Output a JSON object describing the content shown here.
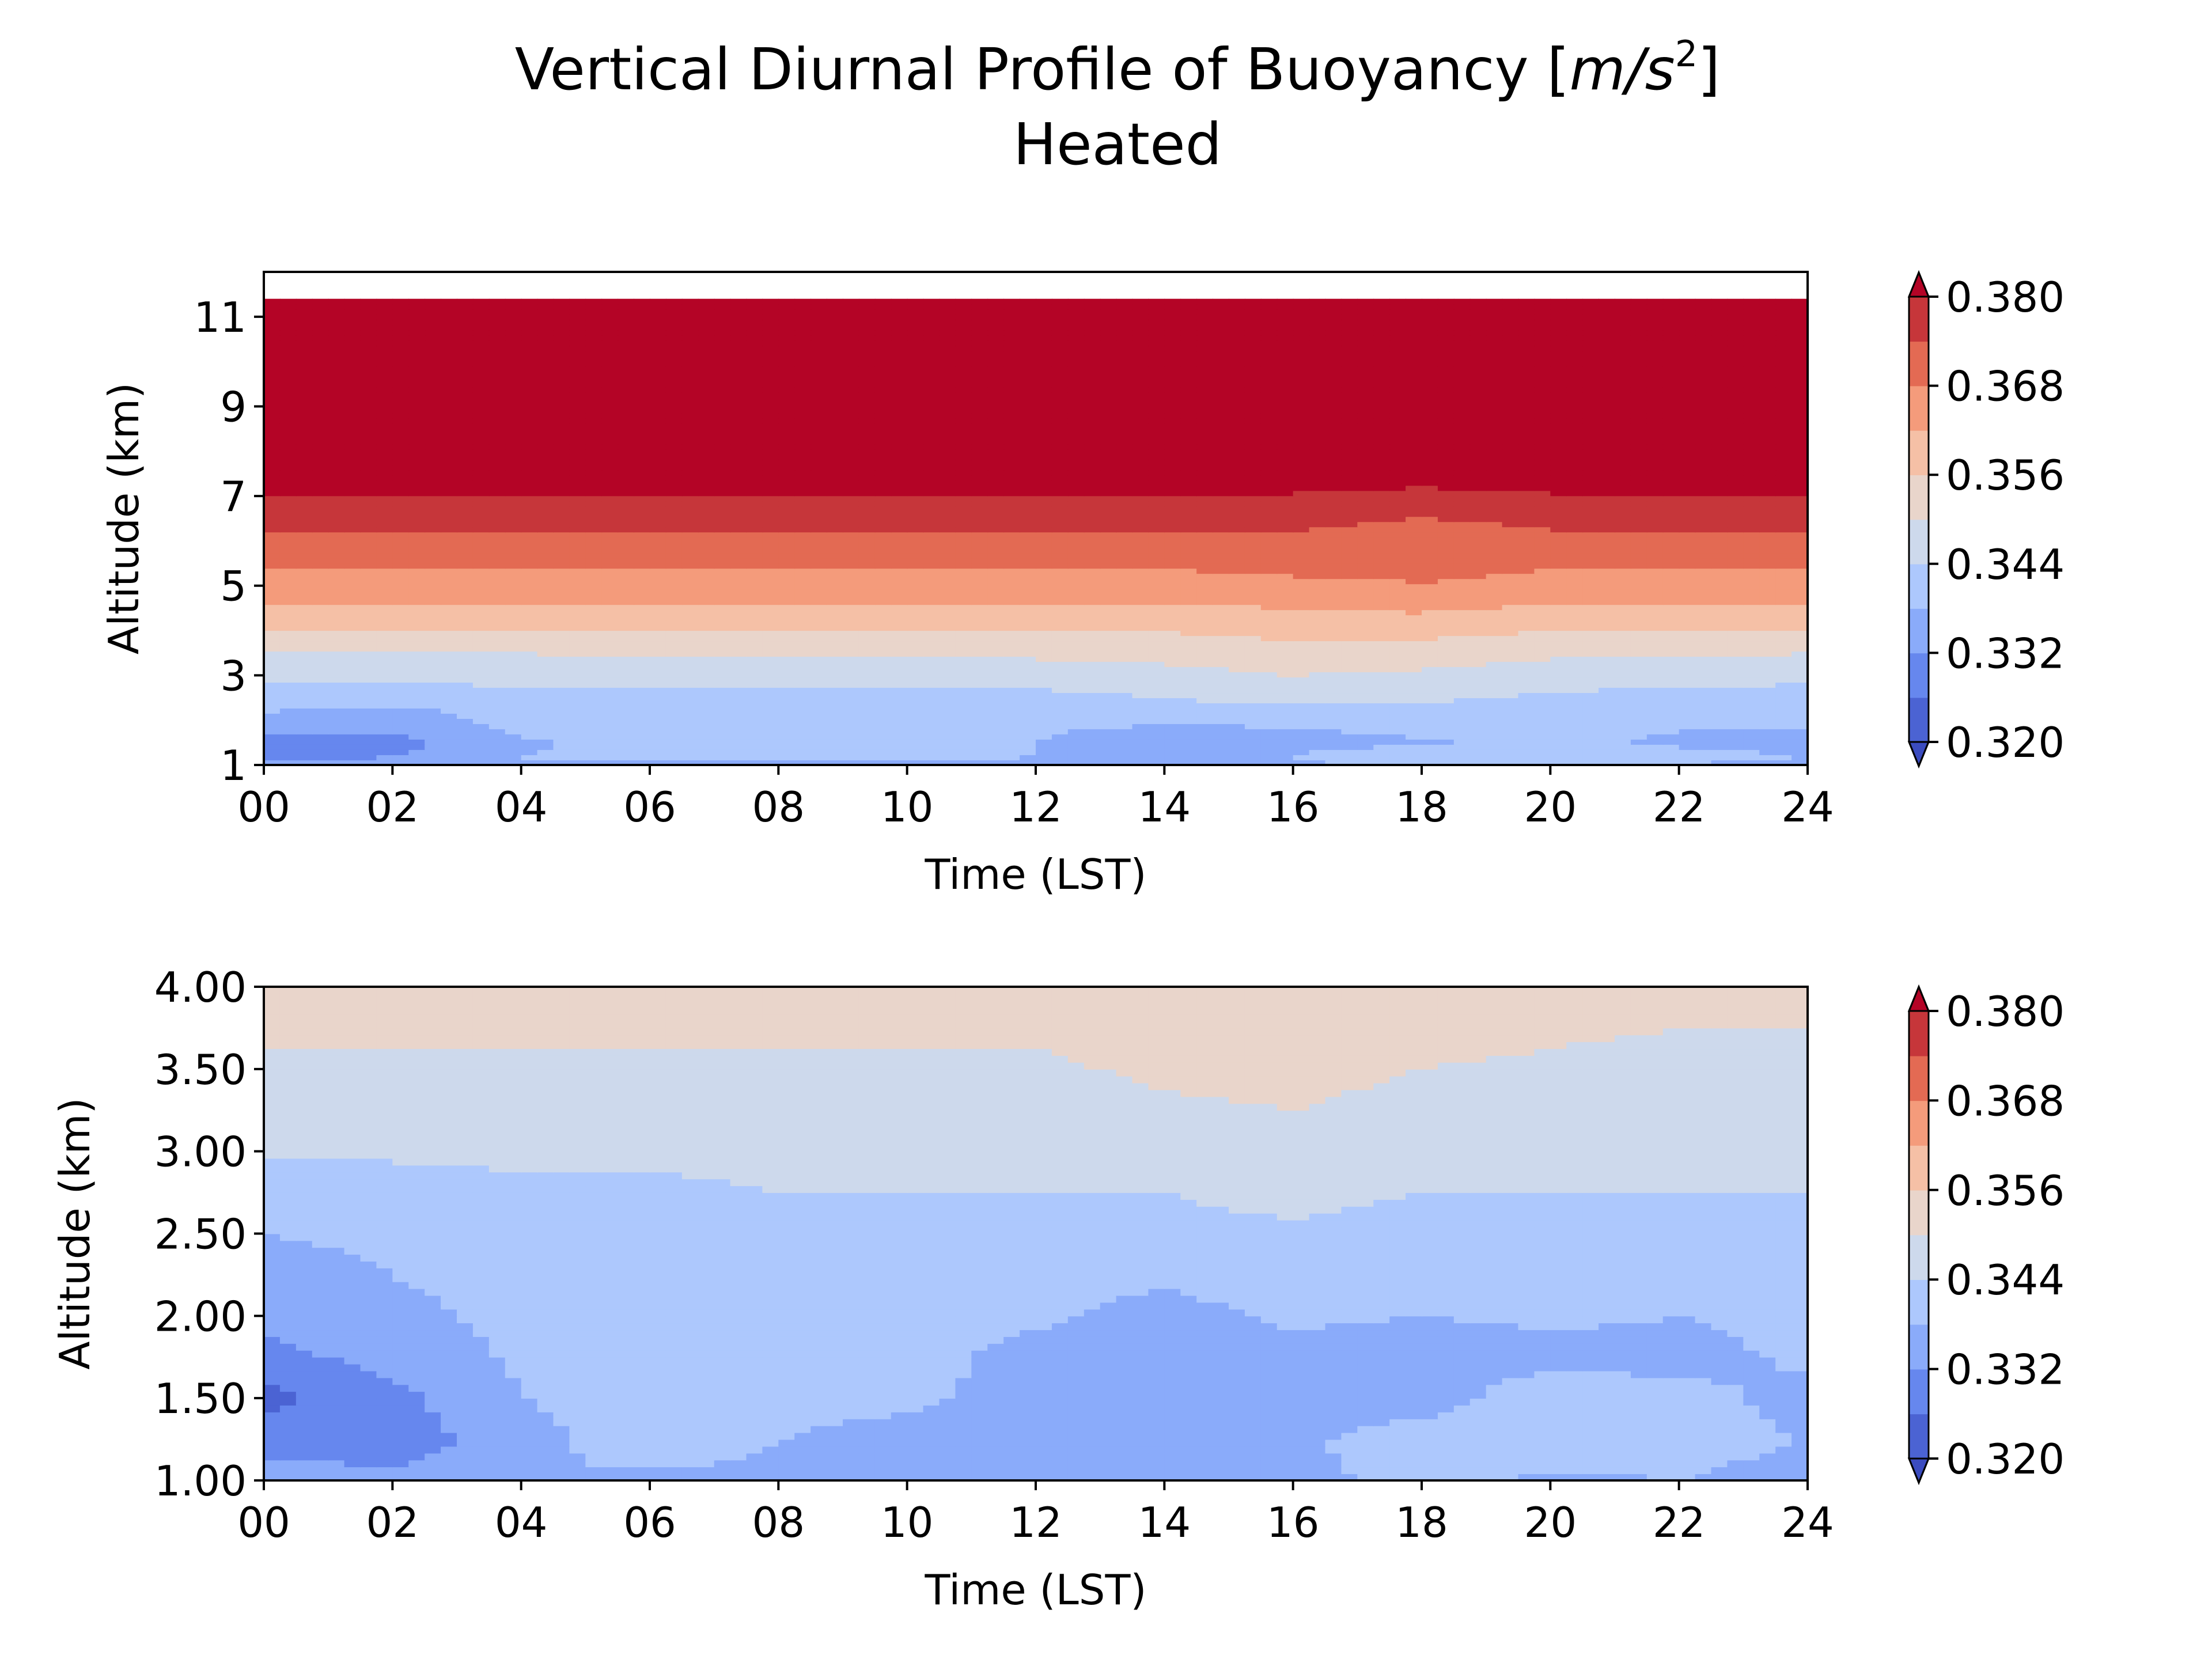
{
  "figure": {
    "title_main": "Vertical Diurnal Profile of Buoyancy [",
    "title_unit_m": "m",
    "title_unit_slash": "/",
    "title_unit_s": "s",
    "title_unit_exp": "2",
    "title_close": "]",
    "subtitle": "Heated"
  },
  "colormap": {
    "name": "coolwarm",
    "levels": [
      0.32,
      0.326,
      0.332,
      0.338,
      0.344,
      0.35,
      0.356,
      0.362,
      0.368,
      0.374,
      0.38
    ],
    "colors": [
      "#4b63d3",
      "#6687ee",
      "#8aabfa",
      "#adc8fd",
      "#cdd9ec",
      "#e9d5cb",
      "#f5c0a6",
      "#f49b7b",
      "#e36a53",
      "#c6363a"
    ],
    "under_color": "#3b4cc0",
    "over_color": "#b40426",
    "colorbar_ticks": [
      "0.320",
      "0.332",
      "0.344",
      "0.356",
      "0.368",
      "0.380"
    ]
  },
  "chart_data": [
    {
      "type": "heatmap",
      "panel": "top",
      "xlabel": "Time (LST)",
      "ylabel": "Altitude (km)",
      "xlim": [
        0,
        24
      ],
      "ylim": [
        1,
        12
      ],
      "x_ticks": [
        "00",
        "02",
        "04",
        "06",
        "08",
        "10",
        "12",
        "14",
        "16",
        "18",
        "20",
        "22",
        "24"
      ],
      "y_ticks": [
        "1",
        "3",
        "5",
        "7",
        "9",
        "11"
      ],
      "y_tick_values": [
        1,
        3,
        5,
        7,
        9,
        11
      ],
      "data_top_km": 11.4,
      "grid": false,
      "colorbar": "right",
      "altitude_km": [
        1.0,
        1.2,
        1.5,
        2.0,
        2.5,
        3.0,
        3.5,
        4.2,
        4.8,
        5.5,
        6.4,
        7.2,
        11.4
      ],
      "time_lst": [
        0,
        2,
        4,
        6,
        8,
        10,
        12,
        14,
        16,
        18,
        20,
        22,
        24
      ],
      "buoyancy_by_altitude": [
        [
          0.334,
          0.334,
          0.338,
          0.336,
          0.337,
          0.337,
          0.337,
          0.336,
          0.337,
          0.339,
          0.337,
          0.338,
          0.336
        ],
        [
          0.33,
          0.332,
          0.338,
          0.34,
          0.34,
          0.34,
          0.338,
          0.336,
          0.338,
          0.343,
          0.344,
          0.34,
          0.338
        ],
        [
          0.328,
          0.33,
          0.337,
          0.341,
          0.34,
          0.338,
          0.338,
          0.334,
          0.336,
          0.337,
          0.34,
          0.337,
          0.336
        ],
        [
          0.336,
          0.334,
          0.34,
          0.341,
          0.341,
          0.34,
          0.339,
          0.339,
          0.339,
          0.341,
          0.339,
          0.339,
          0.339
        ],
        [
          0.341,
          0.34,
          0.342,
          0.342,
          0.342,
          0.342,
          0.342,
          0.344,
          0.346,
          0.345,
          0.343,
          0.342,
          0.341
        ],
        [
          0.346,
          0.346,
          0.346,
          0.347,
          0.346,
          0.346,
          0.347,
          0.348,
          0.35,
          0.349,
          0.347,
          0.346,
          0.346
        ],
        [
          0.35,
          0.35,
          0.35,
          0.351,
          0.351,
          0.351,
          0.351,
          0.352,
          0.354,
          0.353,
          0.351,
          0.351,
          0.35
        ],
        [
          0.358,
          0.358,
          0.358,
          0.358,
          0.358,
          0.358,
          0.358,
          0.358,
          0.359,
          0.36,
          0.358,
          0.358,
          0.358
        ],
        [
          0.364,
          0.364,
          0.364,
          0.364,
          0.364,
          0.364,
          0.364,
          0.364,
          0.365,
          0.366,
          0.364,
          0.364,
          0.364
        ],
        [
          0.369,
          0.369,
          0.369,
          0.369,
          0.369,
          0.369,
          0.369,
          0.369,
          0.37,
          0.371,
          0.369,
          0.369,
          0.369
        ],
        [
          0.375,
          0.375,
          0.375,
          0.375,
          0.375,
          0.375,
          0.375,
          0.375,
          0.375,
          0.373,
          0.375,
          0.375,
          0.375
        ],
        [
          0.381,
          0.381,
          0.381,
          0.381,
          0.381,
          0.381,
          0.381,
          0.381,
          0.381,
          0.38,
          0.381,
          0.381,
          0.381
        ],
        [
          0.385,
          0.385,
          0.385,
          0.385,
          0.385,
          0.385,
          0.385,
          0.385,
          0.385,
          0.385,
          0.385,
          0.385,
          0.385
        ]
      ]
    },
    {
      "type": "heatmap",
      "panel": "bottom",
      "xlabel": "Time (LST)",
      "ylabel": "Altitude (km)",
      "xlim": [
        0,
        24
      ],
      "ylim": [
        1.0,
        4.0
      ],
      "x_ticks": [
        "00",
        "02",
        "04",
        "06",
        "08",
        "10",
        "12",
        "14",
        "16",
        "18",
        "20",
        "22",
        "24"
      ],
      "y_ticks": [
        "1.00",
        "1.50",
        "2.00",
        "2.50",
        "3.00",
        "3.50",
        "4.00"
      ],
      "y_tick_values": [
        1.0,
        1.5,
        2.0,
        2.5,
        3.0,
        3.5,
        4.0
      ],
      "data_top_km": 4.0,
      "grid": false,
      "colorbar": "right",
      "altitude_km": [
        1.0,
        1.25,
        1.5,
        1.75,
        2.0,
        2.25,
        2.5,
        2.75,
        3.0,
        3.25,
        3.5,
        3.75,
        4.0
      ],
      "time_lst": [
        0,
        2,
        4,
        6,
        8,
        10,
        12,
        14,
        16,
        18,
        20,
        22,
        24
      ],
      "buoyancy_by_altitude": [
        [
          0.336,
          0.334,
          0.338,
          0.337,
          0.337,
          0.337,
          0.337,
          0.336,
          0.337,
          0.339,
          0.337,
          0.338,
          0.336
        ],
        [
          0.329,
          0.328,
          0.336,
          0.341,
          0.338,
          0.336,
          0.335,
          0.334,
          0.337,
          0.341,
          0.343,
          0.34,
          0.338
        ],
        [
          0.324,
          0.33,
          0.338,
          0.34,
          0.34,
          0.339,
          0.336,
          0.333,
          0.335,
          0.335,
          0.342,
          0.34,
          0.336
        ],
        [
          0.33,
          0.334,
          0.339,
          0.34,
          0.34,
          0.34,
          0.336,
          0.334,
          0.336,
          0.335,
          0.336,
          0.336,
          0.339
        ],
        [
          0.334,
          0.336,
          0.34,
          0.341,
          0.341,
          0.34,
          0.339,
          0.336,
          0.339,
          0.338,
          0.339,
          0.338,
          0.34
        ],
        [
          0.336,
          0.338,
          0.341,
          0.341,
          0.341,
          0.341,
          0.34,
          0.339,
          0.341,
          0.34,
          0.34,
          0.34,
          0.34
        ],
        [
          0.338,
          0.339,
          0.341,
          0.341,
          0.341,
          0.341,
          0.341,
          0.342,
          0.343,
          0.341,
          0.341,
          0.341,
          0.341
        ],
        [
          0.34,
          0.341,
          0.343,
          0.343,
          0.344,
          0.344,
          0.344,
          0.344,
          0.346,
          0.344,
          0.344,
          0.344,
          0.344
        ],
        [
          0.345,
          0.345,
          0.345,
          0.345,
          0.345,
          0.345,
          0.346,
          0.347,
          0.349,
          0.346,
          0.345,
          0.345,
          0.345
        ],
        [
          0.347,
          0.347,
          0.347,
          0.347,
          0.347,
          0.347,
          0.347,
          0.349,
          0.35,
          0.348,
          0.347,
          0.347,
          0.347
        ],
        [
          0.349,
          0.349,
          0.349,
          0.349,
          0.349,
          0.349,
          0.349,
          0.351,
          0.352,
          0.35,
          0.349,
          0.348,
          0.348
        ],
        [
          0.351,
          0.351,
          0.351,
          0.351,
          0.351,
          0.351,
          0.351,
          0.352,
          0.353,
          0.352,
          0.351,
          0.35,
          0.35
        ],
        [
          0.353,
          0.353,
          0.353,
          0.353,
          0.353,
          0.353,
          0.353,
          0.353,
          0.353,
          0.353,
          0.353,
          0.352,
          0.352
        ]
      ]
    }
  ]
}
